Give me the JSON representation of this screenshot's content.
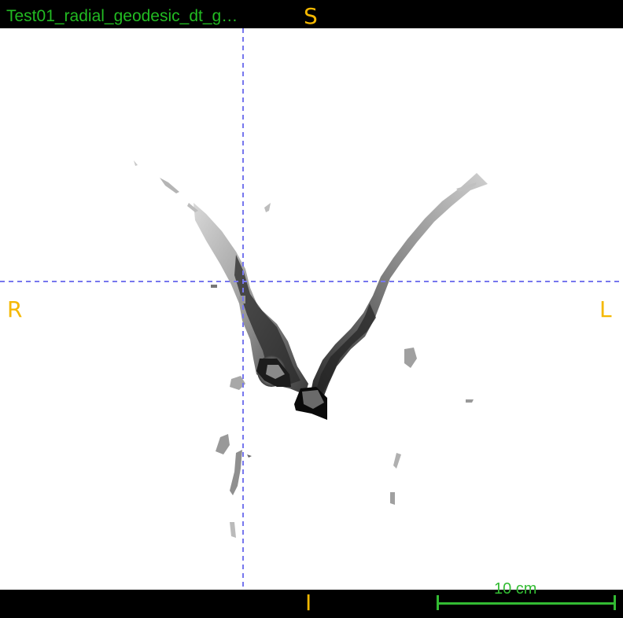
{
  "viewer": {
    "title": "Test01_radial_geodesic_dt_g…",
    "colors": {
      "background": "#000000",
      "image_background": "#ffffff",
      "title": "#22bb22",
      "orientation": "#f5b800",
      "crosshair": "#7777ee",
      "scalebar": "#33bb33"
    }
  },
  "orientation": {
    "superior": "S",
    "inferior": "I",
    "right": "R",
    "left": "L"
  },
  "scalebar": {
    "label": "10 cm"
  }
}
